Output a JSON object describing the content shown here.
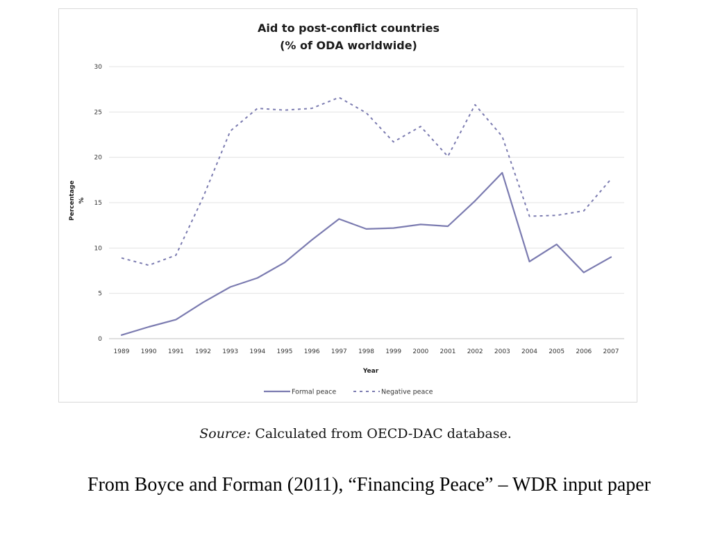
{
  "chart_data": {
    "type": "line",
    "title": [
      "Aid to post-conflict countries",
      "(% of ODA worldwide)"
    ],
    "xlabel": "Year",
    "ylabel": [
      "Percentage",
      "%"
    ],
    "ylim": [
      0,
      30
    ],
    "yticks": [
      0,
      5,
      10,
      15,
      20,
      25,
      30
    ],
    "grid": true,
    "legend_position": "bottom",
    "x": [
      "1989",
      "1990",
      "1991",
      "1992",
      "1993",
      "1994",
      "1995",
      "1996",
      "1997",
      "1998",
      "1999",
      "2000",
      "2001",
      "2002",
      "2003",
      "2004",
      "2005",
      "2006",
      "2007"
    ],
    "series": [
      {
        "name": "Formal peace",
        "style": "solid",
        "color": "#7b7bb0",
        "values": [
          0.4,
          1.3,
          2.1,
          4.0,
          5.7,
          6.7,
          8.4,
          10.9,
          13.2,
          12.1,
          12.2,
          12.6,
          12.4,
          15.2,
          18.3,
          8.5,
          10.4,
          7.3,
          9.0
        ]
      },
      {
        "name": "Negative peace",
        "style": "dashed",
        "color": "#7b7bb0",
        "values": [
          8.9,
          8.1,
          9.2,
          15.6,
          22.9,
          25.4,
          25.2,
          25.4,
          26.6,
          24.9,
          21.7,
          23.4,
          20.1,
          25.8,
          22.3,
          13.5,
          13.6,
          14.1,
          17.6
        ]
      }
    ]
  },
  "source": {
    "label": "Source:",
    "text": " Calculated from OECD-DAC database."
  },
  "citation": "From Boyce and Forman (2011), “Financing Peace” – WDR input paper"
}
